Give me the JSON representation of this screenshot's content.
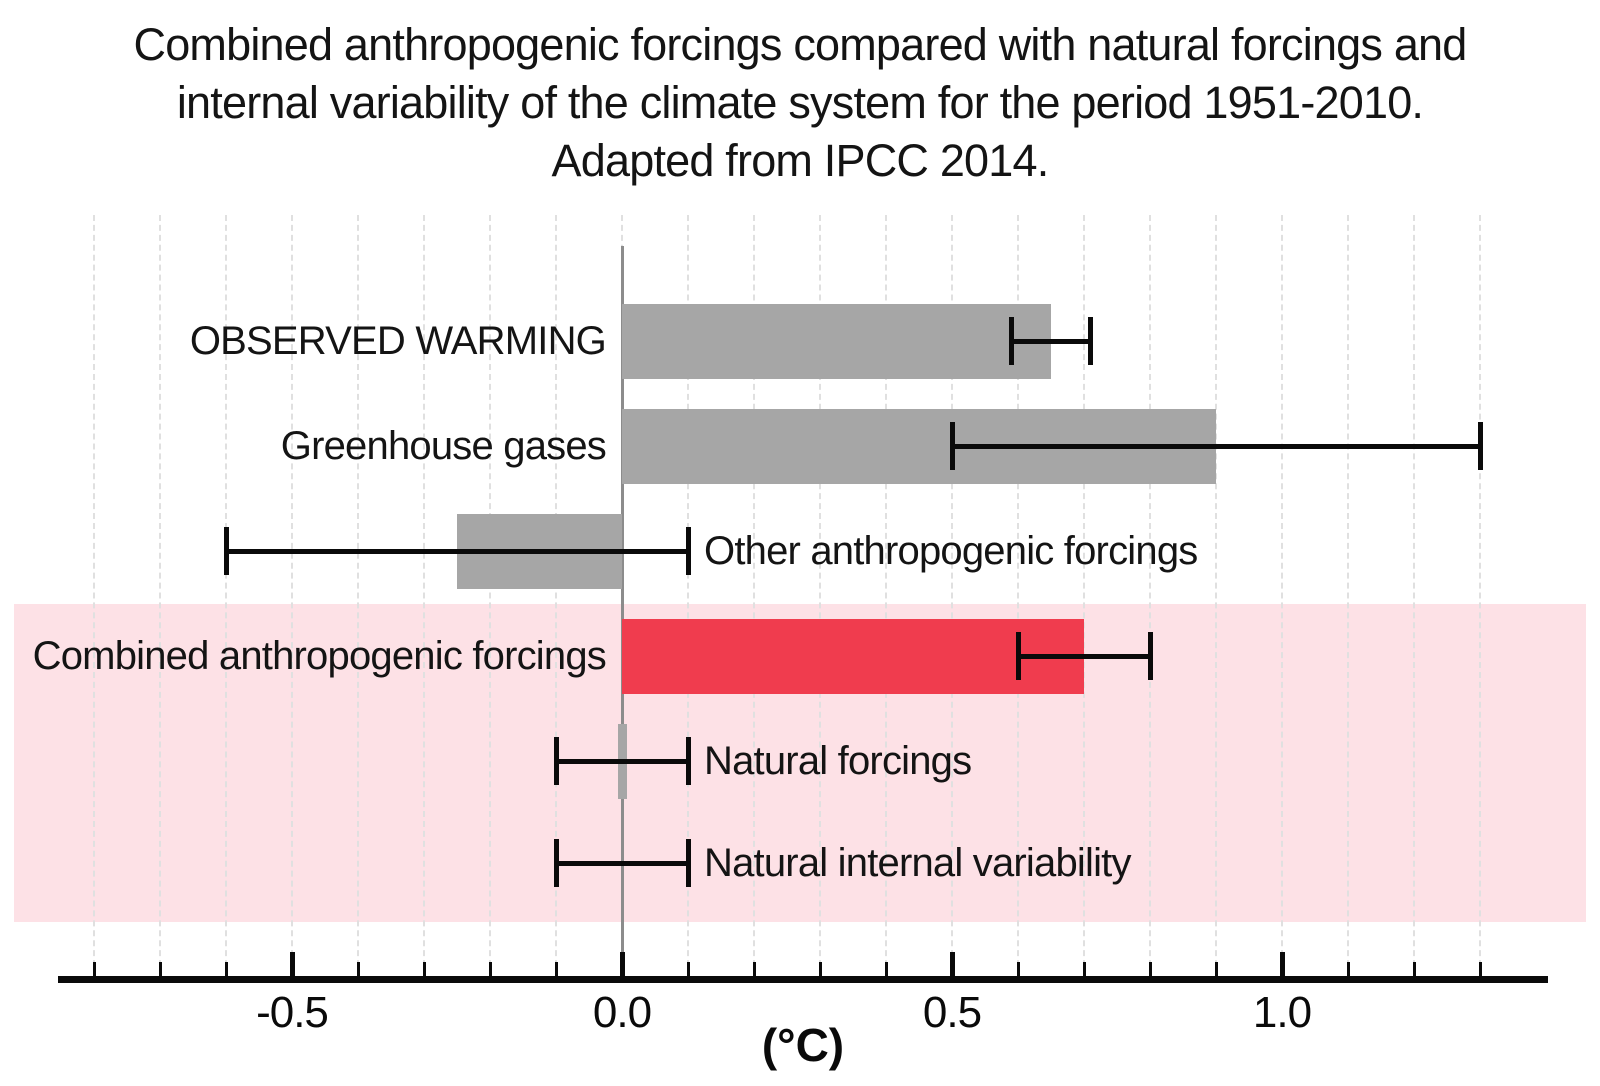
{
  "title_lines": [
    "Combined anthropogenic forcings compared with natural forcings and",
    "internal variability of the climate system for the period 1951-2010.",
    "Adapted from IPCC 2014."
  ],
  "chart_data": {
    "type": "bar",
    "orientation": "horizontal",
    "title": "Combined anthropogenic forcings compared with natural forcings and internal variability of the climate system for the period 1951-2010. Adapted from IPCC 2014.",
    "xlabel": "(°C)",
    "ylabel": "",
    "xlim": [
      -0.85,
      1.4
    ],
    "grid": {
      "style": "vertical dashed",
      "step": 0.1,
      "from": -0.8,
      "to": 1.3
    },
    "x_major_ticks": [
      {
        "value": -0.5,
        "label": "-0.5"
      },
      {
        "value": 0.0,
        "label": "0.0"
      },
      {
        "value": 0.5,
        "label": "0.5"
      },
      {
        "value": 1.0,
        "label": "1.0"
      }
    ],
    "x_minor_ticks": {
      "from": -0.8,
      "to": 1.3,
      "step": 0.1
    },
    "categories": [
      "OBSERVED WARMING",
      "Greenhouse gases",
      "Other anthropogenic forcings",
      "Combined anthropogenic forcings",
      "Natural forcings",
      "Natural internal variability"
    ],
    "rows": [
      {
        "label": "OBSERVED WARMING",
        "value": 0.65,
        "err_low": 0.59,
        "err_high": 0.71,
        "color": "gray",
        "bar": "full",
        "label_side": "left"
      },
      {
        "label": "Greenhouse gases",
        "value": 0.9,
        "err_low": 0.5,
        "err_high": 1.3,
        "color": "gray",
        "bar": "full",
        "label_side": "left"
      },
      {
        "label": "Other anthropogenic forcings",
        "value": -0.25,
        "err_low": -0.6,
        "err_high": 0.1,
        "color": "gray",
        "bar": "full",
        "label_side": "right"
      },
      {
        "label": "Combined anthropogenic forcings",
        "value": 0.7,
        "err_low": 0.6,
        "err_high": 0.8,
        "color": "red",
        "bar": "full",
        "label_side": "left"
      },
      {
        "label": "Natural forcings",
        "value": 0.0,
        "err_low": -0.1,
        "err_high": 0.1,
        "color": "gray",
        "bar": "sliver",
        "label_side": "right"
      },
      {
        "label": "Natural internal variability",
        "value": null,
        "err_low": -0.1,
        "err_high": 0.1,
        "color": "none",
        "bar": "none",
        "label_side": "right"
      }
    ],
    "highlight_band": {
      "covers_rows": [
        "Combined anthropogenic forcings",
        "Natural forcings",
        "Natural internal variability"
      ],
      "color": "#fde1e6"
    },
    "colors": {
      "bar_gray": "#a6a6a6",
      "bar_red": "#f03c4e",
      "highlight_pink": "#fde1e6",
      "zero_line": "#8c8c8c",
      "gridline": "#e0e0e0",
      "axis": "#0a0a0a",
      "text": "#141414"
    },
    "legend": "none"
  }
}
